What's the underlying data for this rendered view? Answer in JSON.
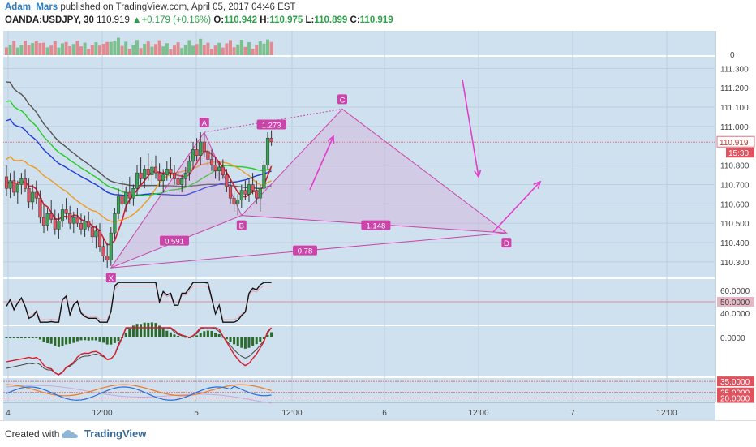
{
  "header": {
    "author": "Adam_Mars",
    "published_text": " published on TradingView.com, April 05, 2017 04:46 EST",
    "symbol": "OANDA:USDJPY, 30",
    "last": "110.919",
    "change": "+0.179 (+0.16%)",
    "o_label": "O:",
    "o": "110.942",
    "h_label": "H:",
    "h": "110.975",
    "l_label": "L:",
    "l": "110.899",
    "c_label": "C:",
    "c": "110.919"
  },
  "footer": {
    "created": "Created with",
    "brand": "TradingView"
  },
  "colors": {
    "bg": "#cfe0ee",
    "pattern": "#cc44aa",
    "up": "#3aa457",
    "down": "#e0525e"
  },
  "chart_data": {
    "type": "candlestick",
    "price_axis": {
      "ticks": [
        "111.300",
        "111.200",
        "111.100",
        "111.000",
        "110.800",
        "110.700",
        "110.600",
        "110.500",
        "110.400",
        "110.300"
      ],
      "last_price": "110.919",
      "countdown": "15:30",
      "range": [
        110.22,
        111.36
      ]
    },
    "time_axis": {
      "ticks": [
        "4",
        "12:00",
        "5",
        "12:00",
        "6",
        "12:00",
        "7",
        "12:00"
      ]
    },
    "volume_axis": {
      "ticks": [
        "0"
      ]
    },
    "pattern": {
      "points": [
        {
          "name": "X",
          "t": 28,
          "p": 110.27
        },
        {
          "name": "A",
          "t": 53,
          "p": 110.97
        },
        {
          "name": "B",
          "t": 63,
          "p": 110.54
        },
        {
          "name": "C",
          "t": 90,
          "p": 111.09
        },
        {
          "name": "D",
          "t": 134,
          "p": 110.45
        }
      ],
      "ratios": [
        {
          "label": "1.273",
          "t": 71,
          "p": 111.01
        },
        {
          "label": "0.591",
          "t": 45,
          "p": 110.41
        },
        {
          "label": "1.148",
          "t": 99,
          "p": 110.49
        },
        {
          "label": "0.78",
          "t": 80,
          "p": 110.36
        }
      ]
    },
    "rsi_axis": {
      "ticks": [
        "60.0000",
        "50.0000",
        "40.0000"
      ]
    },
    "macd_axis": {
      "ticks": [
        "0.0000"
      ]
    },
    "dmi_axis": {
      "ticks": [
        "35.0000",
        "25.0000",
        "20.0000"
      ]
    },
    "candles": [
      [
        110.74,
        110.8,
        110.64,
        110.68
      ],
      [
        110.68,
        110.76,
        110.63,
        110.72
      ],
      [
        110.72,
        110.77,
        110.64,
        110.66
      ],
      [
        110.66,
        110.72,
        110.6,
        110.7
      ],
      [
        110.7,
        110.76,
        110.65,
        110.73
      ],
      [
        110.73,
        110.78,
        110.66,
        110.68
      ],
      [
        110.68,
        110.73,
        110.58,
        110.61
      ],
      [
        110.61,
        110.7,
        110.57,
        110.66
      ],
      [
        110.66,
        110.72,
        110.6,
        110.63
      ],
      [
        110.63,
        110.67,
        110.5,
        110.53
      ],
      [
        110.53,
        110.6,
        110.45,
        110.49
      ],
      [
        110.49,
        110.58,
        110.46,
        110.55
      ],
      [
        110.55,
        110.62,
        110.5,
        110.52
      ],
      [
        110.52,
        110.57,
        110.44,
        110.47
      ],
      [
        110.47,
        110.55,
        110.42,
        110.51
      ],
      [
        110.51,
        110.6,
        110.48,
        110.57
      ],
      [
        110.57,
        110.63,
        110.52,
        110.55
      ],
      [
        110.55,
        110.59,
        110.47,
        110.5
      ],
      [
        110.5,
        110.56,
        110.45,
        110.53
      ],
      [
        110.53,
        110.58,
        110.48,
        110.5
      ],
      [
        110.5,
        110.55,
        110.44,
        110.47
      ],
      [
        110.47,
        110.54,
        110.43,
        110.51
      ],
      [
        110.51,
        110.56,
        110.46,
        110.48
      ],
      [
        110.48,
        110.52,
        110.4,
        110.43
      ],
      [
        110.43,
        110.49,
        110.37,
        110.46
      ],
      [
        110.46,
        110.5,
        110.35,
        110.38
      ],
      [
        110.38,
        110.42,
        110.3,
        110.33
      ],
      [
        110.33,
        110.4,
        110.27,
        110.31
      ],
      [
        110.31,
        110.48,
        110.28,
        110.45
      ],
      [
        110.45,
        110.58,
        110.42,
        110.55
      ],
      [
        110.55,
        110.68,
        110.52,
        110.64
      ],
      [
        110.64,
        110.72,
        110.58,
        110.6
      ],
      [
        110.6,
        110.69,
        110.56,
        110.66
      ],
      [
        110.66,
        110.74,
        110.6,
        110.63
      ],
      [
        110.63,
        110.7,
        110.59,
        110.68
      ],
      [
        110.68,
        110.8,
        110.64,
        110.76
      ],
      [
        110.76,
        110.84,
        110.7,
        110.73
      ],
      [
        110.73,
        110.8,
        110.68,
        110.78
      ],
      [
        110.78,
        110.86,
        110.72,
        110.75
      ],
      [
        110.75,
        110.82,
        110.7,
        110.79
      ],
      [
        110.79,
        110.85,
        110.73,
        110.76
      ],
      [
        110.76,
        110.81,
        110.69,
        110.72
      ],
      [
        110.72,
        110.78,
        110.66,
        110.75
      ],
      [
        110.75,
        110.82,
        110.72,
        110.78
      ],
      [
        110.78,
        110.84,
        110.73,
        110.76
      ],
      [
        110.76,
        110.8,
        110.7,
        110.73
      ],
      [
        110.73,
        110.77,
        110.67,
        110.7
      ],
      [
        110.7,
        110.75,
        110.66,
        110.73
      ],
      [
        110.73,
        110.79,
        110.69,
        110.76
      ],
      [
        110.76,
        110.85,
        110.72,
        110.82
      ],
      [
        110.82,
        110.92,
        110.78,
        110.88
      ],
      [
        110.88,
        110.94,
        110.82,
        110.85
      ],
      [
        110.85,
        110.97,
        110.8,
        110.92
      ],
      [
        110.92,
        110.96,
        110.84,
        110.87
      ],
      [
        110.87,
        110.91,
        110.8,
        110.83
      ],
      [
        110.83,
        110.88,
        110.77,
        110.8
      ],
      [
        110.8,
        110.84,
        110.73,
        110.77
      ],
      [
        110.77,
        110.82,
        110.72,
        110.79
      ],
      [
        110.79,
        110.83,
        110.73,
        110.75
      ],
      [
        110.75,
        110.78,
        110.66,
        110.69
      ],
      [
        110.69,
        110.73,
        110.6,
        110.63
      ],
      [
        110.63,
        110.67,
        110.56,
        110.6
      ],
      [
        110.6,
        110.65,
        110.54,
        110.62
      ],
      [
        110.62,
        110.7,
        110.58,
        110.67
      ],
      [
        110.67,
        110.72,
        110.62,
        110.65
      ],
      [
        110.65,
        110.73,
        110.61,
        110.7
      ],
      [
        110.7,
        110.76,
        110.65,
        110.67
      ],
      [
        110.67,
        110.72,
        110.6,
        110.63
      ],
      [
        110.63,
        110.7,
        110.56,
        110.68
      ],
      [
        110.68,
        110.82,
        110.66,
        110.8
      ],
      [
        110.8,
        110.97,
        110.78,
        110.94
      ],
      [
        110.94,
        110.98,
        110.9,
        110.92
      ]
    ]
  }
}
